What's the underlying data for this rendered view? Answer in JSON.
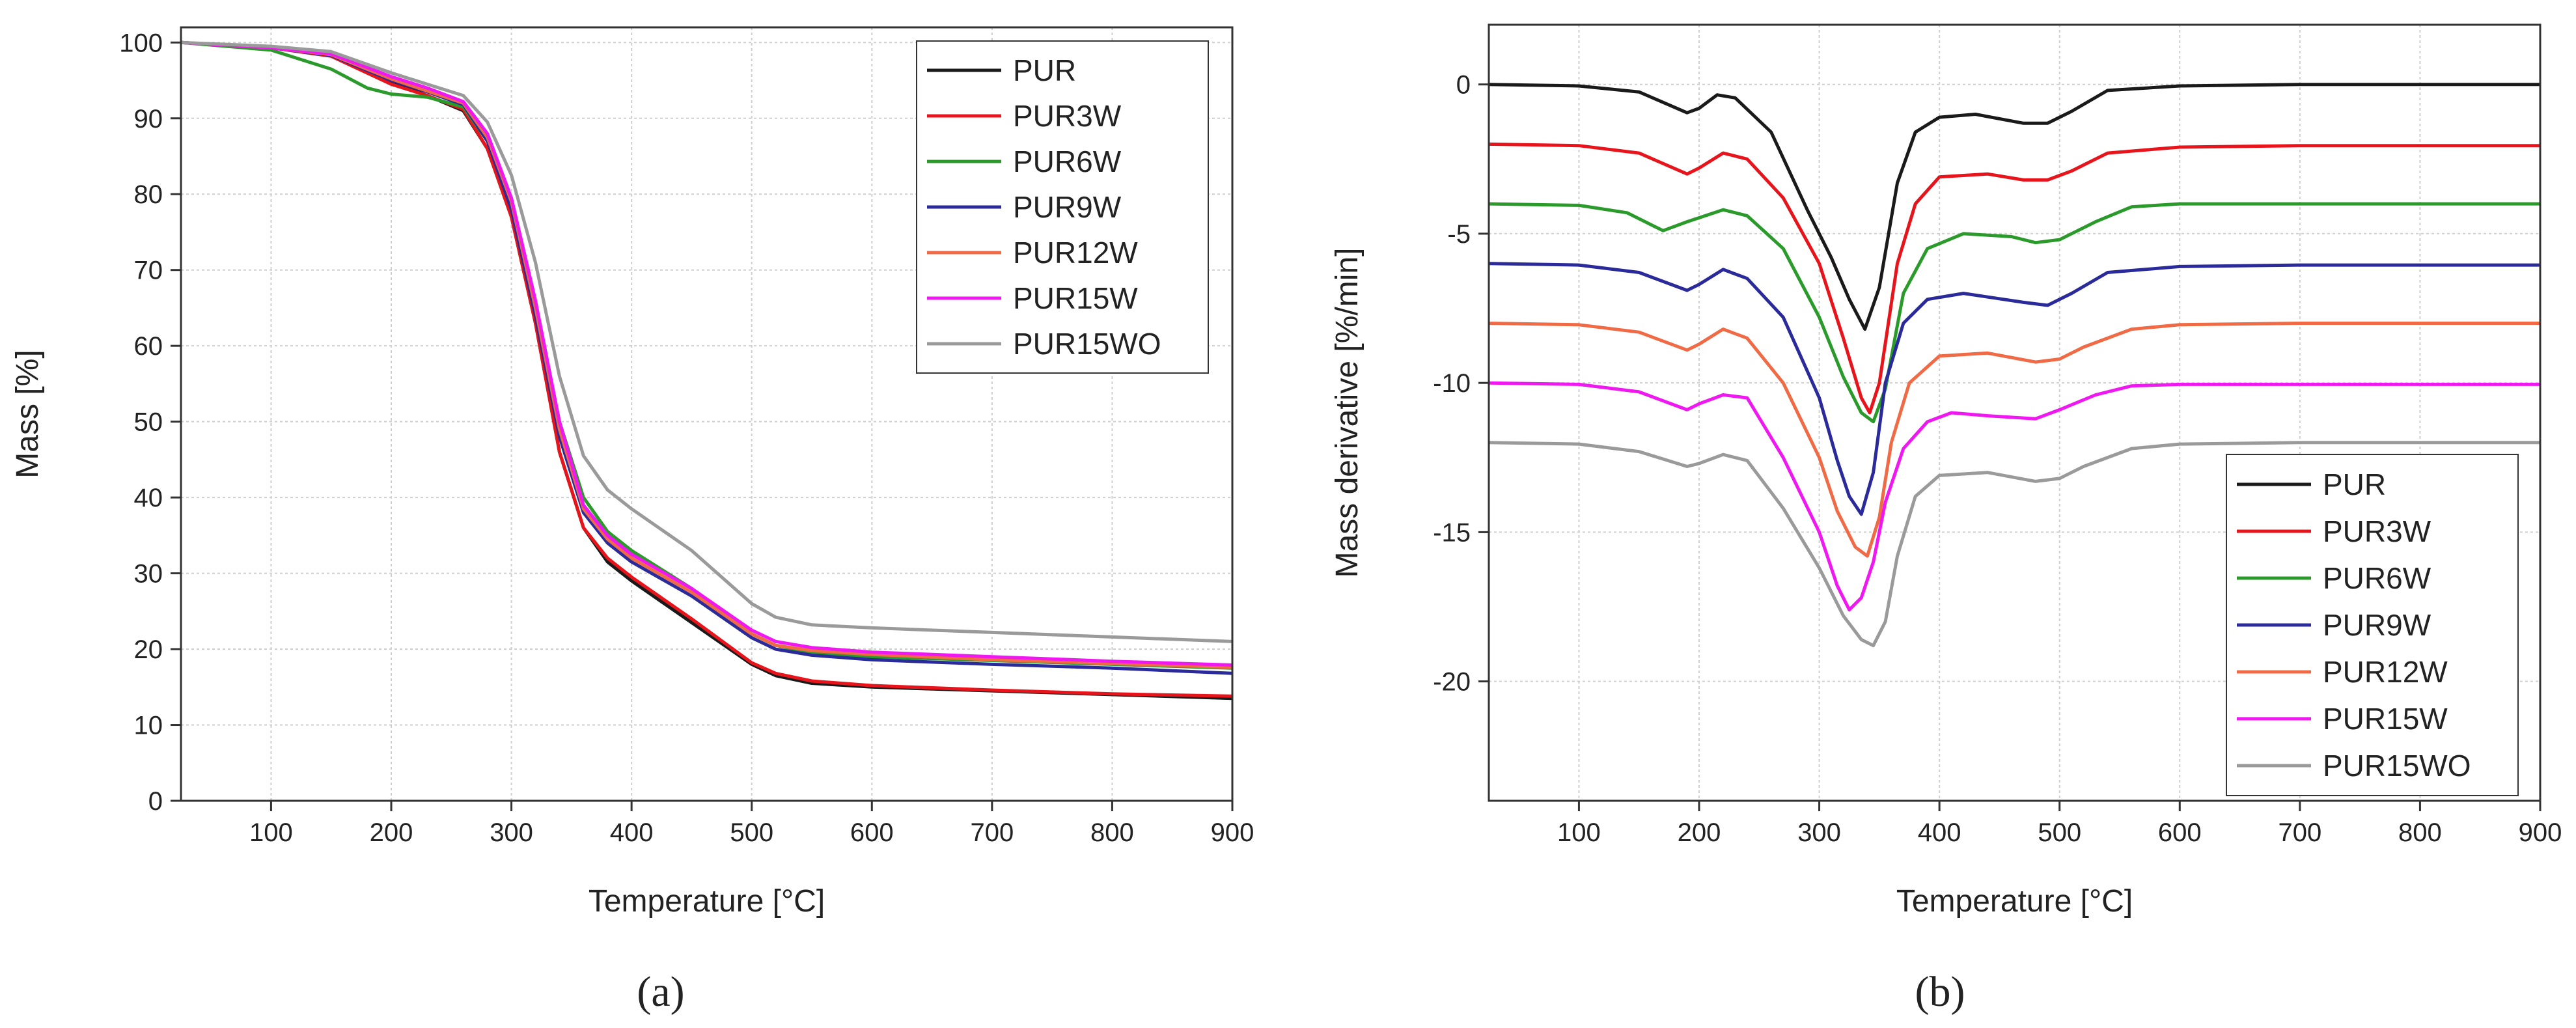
{
  "chart_data": [
    {
      "id": "a",
      "type": "line",
      "panel_label": "(a)",
      "title": "",
      "xlabel": "Temperature [°C]",
      "ylabel": "Mass [%]",
      "xlim": [
        25,
        900
      ],
      "ylim": [
        0,
        102
      ],
      "xticks": [
        100,
        200,
        300,
        400,
        500,
        600,
        700,
        800,
        900
      ],
      "yticks": [
        0,
        10,
        20,
        30,
        40,
        50,
        60,
        70,
        80,
        90,
        100
      ],
      "grid": true,
      "legend_position": "top-right",
      "series": [
        {
          "name": "PUR",
          "color": "#1a1a1a",
          "x": [
            25,
            100,
            150,
            200,
            230,
            260,
            280,
            300,
            320,
            340,
            360,
            380,
            400,
            450,
            500,
            520,
            550,
            600,
            700,
            800,
            900
          ],
          "y": [
            100,
            99.3,
            98.3,
            94.8,
            93.0,
            91.0,
            86,
            77,
            63,
            46,
            36,
            31.5,
            29,
            23.5,
            18,
            16.5,
            15.5,
            15,
            14.5,
            14,
            13.5
          ]
        },
        {
          "name": "PUR3W",
          "color": "#e8141b",
          "x": [
            25,
            100,
            150,
            200,
            230,
            260,
            280,
            300,
            320,
            340,
            360,
            380,
            400,
            450,
            500,
            520,
            550,
            600,
            700,
            800,
            900
          ],
          "y": [
            100,
            99.3,
            98.2,
            94.5,
            93.0,
            91.2,
            86,
            77,
            63,
            46,
            36,
            32,
            29.5,
            24,
            18.2,
            16.8,
            15.8,
            15.2,
            14.6,
            14.1,
            13.8
          ]
        },
        {
          "name": "PUR6W",
          "color": "#2a9a2a",
          "x": [
            25,
            100,
            150,
            180,
            200,
            230,
            260,
            280,
            300,
            320,
            340,
            360,
            380,
            400,
            450,
            500,
            520,
            550,
            600,
            700,
            800,
            900
          ],
          "y": [
            100,
            99,
            96.5,
            94,
            93.2,
            92.8,
            91.5,
            87,
            79,
            65.5,
            50,
            40,
            35.5,
            33,
            28,
            22,
            20.5,
            19.5,
            19,
            18.5,
            18,
            17.5
          ]
        },
        {
          "name": "PUR9W",
          "color": "#2a2a9a",
          "x": [
            25,
            100,
            150,
            200,
            230,
            260,
            280,
            300,
            320,
            340,
            360,
            380,
            400,
            450,
            500,
            520,
            550,
            600,
            700,
            800,
            900
          ],
          "y": [
            100,
            99.3,
            98.3,
            95,
            93.5,
            91.8,
            87,
            78,
            64,
            48,
            38,
            34,
            31.5,
            27,
            21.5,
            20,
            19.2,
            18.6,
            18,
            17.5,
            16.8
          ]
        },
        {
          "name": "PUR12W",
          "color": "#ef6a45",
          "x": [
            25,
            100,
            150,
            200,
            230,
            260,
            280,
            300,
            320,
            340,
            360,
            380,
            400,
            450,
            500,
            520,
            550,
            600,
            700,
            800,
            900
          ],
          "y": [
            100,
            99.3,
            98.4,
            95.2,
            93.6,
            92,
            87.5,
            79,
            65,
            49,
            38.5,
            34.5,
            32,
            27.5,
            22,
            20.5,
            19.8,
            19.3,
            18.6,
            18.1,
            17.6
          ]
        },
        {
          "name": "PUR15W",
          "color": "#f018f0",
          "x": [
            25,
            100,
            150,
            200,
            230,
            260,
            280,
            300,
            320,
            340,
            360,
            380,
            400,
            450,
            500,
            520,
            550,
            600,
            700,
            800,
            900
          ],
          "y": [
            100,
            99.3,
            98.5,
            95.5,
            94,
            92.2,
            88,
            79.5,
            66,
            50,
            39,
            35,
            32.5,
            28,
            22.5,
            21,
            20.2,
            19.6,
            19,
            18.4,
            17.9
          ]
        },
        {
          "name": "PUR15WO",
          "color": "#9a9a9a",
          "x": [
            25,
            100,
            150,
            200,
            230,
            260,
            280,
            300,
            320,
            340,
            360,
            380,
            400,
            450,
            500,
            520,
            550,
            600,
            700,
            800,
            900
          ],
          "y": [
            100,
            99.5,
            98.8,
            96,
            94.5,
            93,
            89.5,
            82.5,
            71,
            56,
            45.5,
            41,
            38.5,
            33,
            26,
            24.2,
            23.2,
            22.8,
            22.2,
            21.6,
            21
          ]
        }
      ]
    },
    {
      "id": "b",
      "type": "line",
      "panel_label": "(b)",
      "title": "",
      "xlabel": "Temperature [°C]",
      "ylabel": "Mass derivative [%/min]",
      "xlim": [
        25,
        900
      ],
      "ylim": [
        -24,
        2
      ],
      "xticks": [
        100,
        200,
        300,
        400,
        500,
        600,
        700,
        800,
        900
      ],
      "yticks": [
        0,
        -5,
        -10,
        -15,
        -20
      ],
      "grid": true,
      "legend_position": "bottom-right",
      "series": [
        {
          "name": "PUR",
          "color": "#1a1a1a",
          "x": [
            25,
            100,
            150,
            190,
            200,
            215,
            230,
            260,
            290,
            310,
            325,
            338,
            350,
            365,
            380,
            400,
            430,
            470,
            490,
            510,
            540,
            600,
            700,
            800,
            900
          ],
          "y": [
            0,
            -0.05,
            -0.25,
            -0.95,
            -0.8,
            -0.35,
            -0.45,
            -1.6,
            -4.2,
            -5.8,
            -7.2,
            -8.2,
            -6.8,
            -3.3,
            -1.6,
            -1.1,
            -1.0,
            -1.3,
            -1.3,
            -0.9,
            -0.2,
            -0.05,
            0,
            0,
            0
          ]
        },
        {
          "name": "PUR3W",
          "color": "#e8141b",
          "x": [
            25,
            100,
            150,
            190,
            200,
            220,
            240,
            270,
            300,
            320,
            335,
            342,
            350,
            365,
            380,
            400,
            440,
            470,
            490,
            510,
            540,
            600,
            700,
            800,
            900
          ],
          "y": [
            -2,
            -2.05,
            -2.3,
            -3.0,
            -2.8,
            -2.3,
            -2.5,
            -3.8,
            -6,
            -8.5,
            -10.5,
            -11,
            -10,
            -6,
            -4,
            -3.1,
            -3.0,
            -3.2,
            -3.2,
            -2.9,
            -2.3,
            -2.1,
            -2.05,
            -2.05,
            -2.05
          ]
        },
        {
          "name": "PUR6W",
          "color": "#2a9a2a",
          "x": [
            25,
            100,
            140,
            170,
            190,
            220,
            240,
            270,
            300,
            320,
            335,
            345,
            355,
            370,
            390,
            420,
            460,
            480,
            500,
            530,
            560,
            600,
            700,
            800,
            900
          ],
          "y": [
            -4,
            -4.05,
            -4.3,
            -4.9,
            -4.6,
            -4.2,
            -4.4,
            -5.5,
            -7.8,
            -9.8,
            -11,
            -11.3,
            -10.2,
            -7,
            -5.5,
            -5.0,
            -5.1,
            -5.3,
            -5.2,
            -4.6,
            -4.1,
            -4.0,
            -4.0,
            -4.0,
            -4.0
          ]
        },
        {
          "name": "PUR9W",
          "color": "#2a2a9a",
          "x": [
            25,
            100,
            150,
            190,
            200,
            220,
            240,
            270,
            300,
            315,
            325,
            335,
            345,
            355,
            370,
            390,
            420,
            470,
            490,
            510,
            540,
            600,
            700,
            800,
            900
          ],
          "y": [
            -6,
            -6.05,
            -6.3,
            -6.9,
            -6.7,
            -6.2,
            -6.5,
            -7.8,
            -10.5,
            -12.6,
            -13.8,
            -14.4,
            -13,
            -10,
            -8,
            -7.2,
            -7.0,
            -7.3,
            -7.4,
            -7.0,
            -6.3,
            -6.1,
            -6.05,
            -6.05,
            -6.05
          ]
        },
        {
          "name": "PUR12W",
          "color": "#ef6a45",
          "x": [
            25,
            100,
            150,
            190,
            200,
            220,
            240,
            270,
            300,
            315,
            330,
            340,
            350,
            360,
            375,
            400,
            440,
            480,
            500,
            520,
            560,
            600,
            700,
            800,
            900
          ],
          "y": [
            -8,
            -8.05,
            -8.3,
            -8.9,
            -8.7,
            -8.2,
            -8.5,
            -10,
            -12.5,
            -14.3,
            -15.5,
            -15.8,
            -14.5,
            -12,
            -10,
            -9.1,
            -9.0,
            -9.3,
            -9.2,
            -8.8,
            -8.2,
            -8.05,
            -8.0,
            -8.0,
            -8.0
          ]
        },
        {
          "name": "PUR15W",
          "color": "#f018f0",
          "x": [
            25,
            100,
            150,
            190,
            200,
            220,
            240,
            270,
            300,
            315,
            325,
            335,
            345,
            355,
            370,
            390,
            410,
            440,
            480,
            500,
            530,
            560,
            600,
            700,
            800,
            900
          ],
          "y": [
            -10,
            -10.05,
            -10.3,
            -10.9,
            -10.7,
            -10.4,
            -10.5,
            -12.5,
            -15,
            -16.8,
            -17.6,
            -17.2,
            -16,
            -14,
            -12.2,
            -11.3,
            -11,
            -11.1,
            -11.2,
            -10.9,
            -10.4,
            -10.1,
            -10.05,
            -10.05,
            -10.05,
            -10.05
          ]
        },
        {
          "name": "PUR15WO",
          "color": "#9a9a9a",
          "x": [
            25,
            100,
            150,
            190,
            200,
            220,
            240,
            270,
            300,
            320,
            335,
            345,
            355,
            365,
            380,
            400,
            440,
            480,
            500,
            520,
            560,
            600,
            700,
            800,
            900
          ],
          "y": [
            -12,
            -12.05,
            -12.3,
            -12.8,
            -12.7,
            -12.4,
            -12.6,
            -14.2,
            -16.2,
            -17.8,
            -18.6,
            -18.8,
            -18,
            -15.8,
            -13.8,
            -13.1,
            -13.0,
            -13.3,
            -13.2,
            -12.8,
            -12.2,
            -12.05,
            -12.0,
            -12.0,
            -12.0
          ]
        }
      ]
    }
  ]
}
